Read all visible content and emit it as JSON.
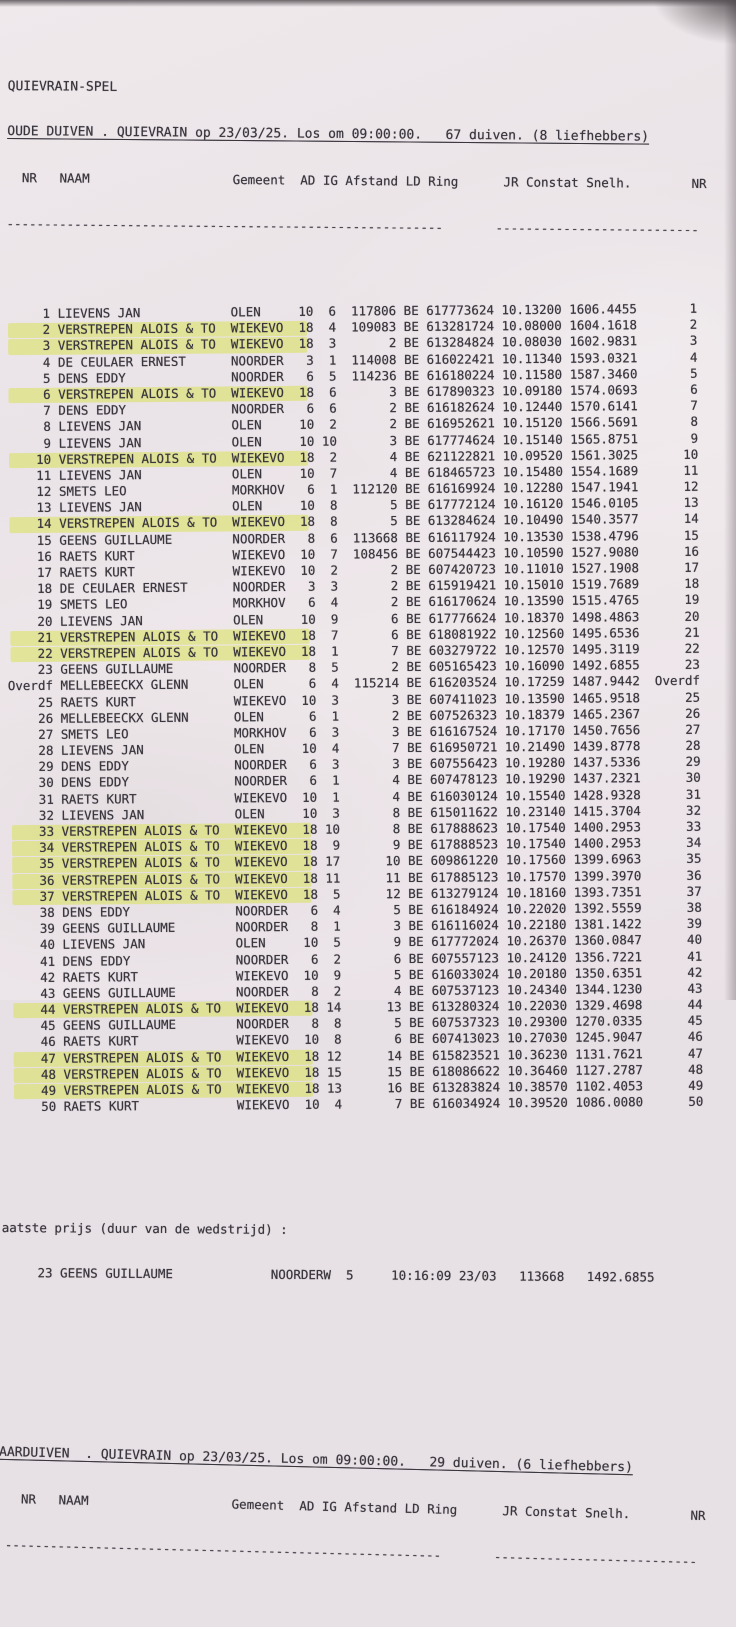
{
  "theme": {
    "highlight": "#d9e25e",
    "paper": "#ece5e9",
    "ink": "#39363d"
  },
  "doc": {
    "title": "QUIEVRAIN-SPEL",
    "section1_title": "OUDE DUIVEN . QUIEVRAIN op 23/03/25. Los om 09:00:00.   67 duiven. (8 liefhebbers)",
    "section2_title": "AARDUIVEN  . QUIEVRAIN op 23/03/25. Los om 09:00:00.   29 duiven. (6 liefhebbers)"
  },
  "columns": {
    "nr": "NR",
    "naam": "NAAM",
    "gemeente": "Gemeent",
    "ad": "AD",
    "ig": "IG",
    "afstand": "Afstand",
    "ld_ring": "LD Ring",
    "jr_constat": "JR Constat",
    "snelh": "Snelh.",
    "nr2": "NR"
  },
  "separators": {
    "left": "----------------------------------------------------------",
    "right": "---------------------------"
  },
  "results": {
    "rows": [
      {
        "n": "1",
        "name": "LIEVENS JAN",
        "gem": "OLEN",
        "ad": "10",
        "ig": "6",
        "d": "117806",
        "ring": "BE 617773624",
        "t": "10.13200",
        "s": "1606.4455"
      },
      {
        "n": "2",
        "name": "VERSTREPEN ALOIS & TO",
        "gem": "WIEKEVO",
        "ad": "18",
        "ig": "4",
        "d": "109083",
        "ring": "BE 613281724",
        "t": "10.08000",
        "s": "1604.1618",
        "hl": true
      },
      {
        "n": "3",
        "name": "VERSTREPEN ALOIS & TO",
        "gem": "WIEKEVO",
        "ad": "18",
        "ig": "3",
        "d": "2",
        "ring": "BE 613284824",
        "t": "10.08030",
        "s": "1602.9831",
        "hl": true
      },
      {
        "n": "4",
        "name": "DE CEULAER ERNEST",
        "gem": "NOORDER",
        "ad": "3",
        "ig": "1",
        "d": "114008",
        "ring": "BE 616022421",
        "t": "10.11340",
        "s": "1593.0321"
      },
      {
        "n": "5",
        "name": "DENS EDDY",
        "gem": "NOORDER",
        "ad": "6",
        "ig": "5",
        "d": "114236",
        "ring": "BE 616180224",
        "t": "10.11580",
        "s": "1587.3460"
      },
      {
        "n": "6",
        "name": "VERSTREPEN ALOIS & TO",
        "gem": "WIEKEVO",
        "ad": "18",
        "ig": "6",
        "d": "3",
        "ring": "BE 617890323",
        "t": "10.09180",
        "s": "1574.0693",
        "hl": true
      },
      {
        "n": "7",
        "name": "DENS EDDY",
        "gem": "NOORDER",
        "ad": "6",
        "ig": "6",
        "d": "2",
        "ring": "BE 616182624",
        "t": "10.12440",
        "s": "1570.6141"
      },
      {
        "n": "8",
        "name": "LIEVENS JAN",
        "gem": "OLEN",
        "ad": "10",
        "ig": "2",
        "d": "2",
        "ring": "BE 616952621",
        "t": "10.15120",
        "s": "1566.5691"
      },
      {
        "n": "9",
        "name": "LIEVENS JAN",
        "gem": "OLEN",
        "ad": "10",
        "ig": "10",
        "d": "3",
        "ring": "BE 617774624",
        "t": "10.15140",
        "s": "1565.8751"
      },
      {
        "n": "10",
        "name": "VERSTREPEN ALOIS & TO",
        "gem": "WIEKEVO",
        "ad": "18",
        "ig": "2",
        "d": "4",
        "ring": "BE 621122821",
        "t": "10.09520",
        "s": "1561.3025",
        "hl": true
      },
      {
        "n": "11",
        "name": "LIEVENS JAN",
        "gem": "OLEN",
        "ad": "10",
        "ig": "7",
        "d": "4",
        "ring": "BE 618465723",
        "t": "10.15480",
        "s": "1554.1689"
      },
      {
        "n": "12",
        "name": "SMETS LEO",
        "gem": "MORKHOV",
        "ad": "6",
        "ig": "1",
        "d": "112120",
        "ring": "BE 616169924",
        "t": "10.12280",
        "s": "1547.1941"
      },
      {
        "n": "13",
        "name": "LIEVENS JAN",
        "gem": "OLEN",
        "ad": "10",
        "ig": "8",
        "d": "5",
        "ring": "BE 617772124",
        "t": "10.16120",
        "s": "1546.0105"
      },
      {
        "n": "14",
        "name": "VERSTREPEN ALOIS & TO",
        "gem": "WIEKEVO",
        "ad": "18",
        "ig": "8",
        "d": "5",
        "ring": "BE 613284624",
        "t": "10.10490",
        "s": "1540.3577",
        "hl": true
      },
      {
        "n": "15",
        "name": "GEENS GUILLAUME",
        "gem": "NOORDER",
        "ad": "8",
        "ig": "6",
        "d": "113668",
        "ring": "BE 616117924",
        "t": "10.13530",
        "s": "1538.4796"
      },
      {
        "n": "16",
        "name": "RAETS KURT",
        "gem": "WIEKEVO",
        "ad": "10",
        "ig": "7",
        "d": "108456",
        "ring": "BE 607544423",
        "t": "10.10590",
        "s": "1527.9080"
      },
      {
        "n": "17",
        "name": "RAETS KURT",
        "gem": "WIEKEVO",
        "ad": "10",
        "ig": "2",
        "d": "2",
        "ring": "BE 607420723",
        "t": "10.11010",
        "s": "1527.1908"
      },
      {
        "n": "18",
        "name": "DE CEULAER ERNEST",
        "gem": "NOORDER",
        "ad": "3",
        "ig": "3",
        "d": "2",
        "ring": "BE 615919421",
        "t": "10.15010",
        "s": "1519.7689"
      },
      {
        "n": "19",
        "name": "SMETS LEO",
        "gem": "MORKHOV",
        "ad": "6",
        "ig": "4",
        "d": "2",
        "ring": "BE 616170624",
        "t": "10.13590",
        "s": "1515.4765"
      },
      {
        "n": "20",
        "name": "LIEVENS JAN",
        "gem": "OLEN",
        "ad": "10",
        "ig": "9",
        "d": "6",
        "ring": "BE 617776624",
        "t": "10.18370",
        "s": "1498.4863"
      },
      {
        "n": "21",
        "name": "VERSTREPEN ALOIS & TO",
        "gem": "WIEKEVO",
        "ad": "18",
        "ig": "7",
        "d": "6",
        "ring": "BE 618081922",
        "t": "10.12560",
        "s": "1495.6536",
        "hl": true
      },
      {
        "n": "22",
        "name": "VERSTREPEN ALOIS & TO",
        "gem": "WIEKEVO",
        "ad": "18",
        "ig": "1",
        "d": "7",
        "ring": "BE 603279722",
        "t": "10.12570",
        "s": "1495.3119",
        "hl": true
      },
      {
        "n": "23",
        "name": "GEENS GUILLAUME",
        "gem": "NOORDER",
        "ad": "8",
        "ig": "5",
        "d": "2",
        "ring": "BE 605165423",
        "t": "10.16090",
        "s": "1492.6855"
      },
      {
        "n": "Overdf",
        "name": "MELLEBEECKX GLENN",
        "gem": "OLEN",
        "ad": "6",
        "ig": "4",
        "d": "115214",
        "ring": "BE 616203524",
        "t": "10.17259",
        "s": "1487.9442"
      },
      {
        "n": "25",
        "name": "RAETS KURT",
        "gem": "WIEKEVO",
        "ad": "10",
        "ig": "3",
        "d": "3",
        "ring": "BE 607411023",
        "t": "10.13590",
        "s": "1465.9518"
      },
      {
        "n": "26",
        "name": "MELLEBEECKX GLENN",
        "gem": "OLEN",
        "ad": "6",
        "ig": "1",
        "d": "2",
        "ring": "BE 607526323",
        "t": "10.18379",
        "s": "1465.2367"
      },
      {
        "n": "27",
        "name": "SMETS LEO",
        "gem": "MORKHOV",
        "ad": "6",
        "ig": "3",
        "d": "3",
        "ring": "BE 616167524",
        "t": "10.17170",
        "s": "1450.7656"
      },
      {
        "n": "28",
        "name": "LIEVENS JAN",
        "gem": "OLEN",
        "ad": "10",
        "ig": "4",
        "d": "7",
        "ring": "BE 616950721",
        "t": "10.21490",
        "s": "1439.8778"
      },
      {
        "n": "29",
        "name": "DENS EDDY",
        "gem": "NOORDER",
        "ad": "6",
        "ig": "3",
        "d": "3",
        "ring": "BE 607556423",
        "t": "10.19280",
        "s": "1437.5336"
      },
      {
        "n": "30",
        "name": "DENS EDDY",
        "gem": "NOORDER",
        "ad": "6",
        "ig": "1",
        "d": "4",
        "ring": "BE 607478123",
        "t": "10.19290",
        "s": "1437.2321"
      },
      {
        "n": "31",
        "name": "RAETS KURT",
        "gem": "WIEKEVO",
        "ad": "10",
        "ig": "1",
        "d": "4",
        "ring": "BE 616030124",
        "t": "10.15540",
        "s": "1428.9328"
      },
      {
        "n": "32",
        "name": "LIEVENS JAN",
        "gem": "OLEN",
        "ad": "10",
        "ig": "3",
        "d": "8",
        "ring": "BE 615011622",
        "t": "10.23140",
        "s": "1415.3704"
      },
      {
        "n": "33",
        "name": "VERSTREPEN ALOIS & TO",
        "gem": "WIEKEVO",
        "ad": "18",
        "ig": "10",
        "d": "8",
        "ring": "BE 617888623",
        "t": "10.17540",
        "s": "1400.2953",
        "hl": true
      },
      {
        "n": "34",
        "name": "VERSTREPEN ALOIS & TO",
        "gem": "WIEKEVO",
        "ad": "18",
        "ig": "9",
        "d": "9",
        "ring": "BE 617888523",
        "t": "10.17540",
        "s": "1400.2953",
        "hl": true
      },
      {
        "n": "35",
        "name": "VERSTREPEN ALOIS & TO",
        "gem": "WIEKEVO",
        "ad": "18",
        "ig": "17",
        "d": "10",
        "ring": "BE 609861220",
        "t": "10.17560",
        "s": "1399.6963",
        "hl": true
      },
      {
        "n": "36",
        "name": "VERSTREPEN ALOIS & TO",
        "gem": "WIEKEVO",
        "ad": "18",
        "ig": "11",
        "d": "11",
        "ring": "BE 617885123",
        "t": "10.17570",
        "s": "1399.3970",
        "hl": true
      },
      {
        "n": "37",
        "name": "VERSTREPEN ALOIS & TO",
        "gem": "WIEKEVO",
        "ad": "18",
        "ig": "5",
        "d": "12",
        "ring": "BE 613279124",
        "t": "10.18160",
        "s": "1393.7351",
        "hl": true
      },
      {
        "n": "38",
        "name": "DENS EDDY",
        "gem": "NOORDER",
        "ad": "6",
        "ig": "4",
        "d": "5",
        "ring": "BE 616184924",
        "t": "10.22020",
        "s": "1392.5559"
      },
      {
        "n": "39",
        "name": "GEENS GUILLAUME",
        "gem": "NOORDER",
        "ad": "8",
        "ig": "1",
        "d": "3",
        "ring": "BE 616116024",
        "t": "10.22180",
        "s": "1381.1422"
      },
      {
        "n": "40",
        "name": "LIEVENS JAN",
        "gem": "OLEN",
        "ad": "10",
        "ig": "5",
        "d": "9",
        "ring": "BE 617772024",
        "t": "10.26370",
        "s": "1360.0847"
      },
      {
        "n": "41",
        "name": "DENS EDDY",
        "gem": "NOORDER",
        "ad": "6",
        "ig": "2",
        "d": "6",
        "ring": "BE 607557123",
        "t": "10.24120",
        "s": "1356.7221"
      },
      {
        "n": "42",
        "name": "RAETS KURT",
        "gem": "WIEKEVO",
        "ad": "10",
        "ig": "9",
        "d": "5",
        "ring": "BE 616033024",
        "t": "10.20180",
        "s": "1350.6351"
      },
      {
        "n": "43",
        "name": "GEENS GUILLAUME",
        "gem": "NOORDER",
        "ad": "8",
        "ig": "2",
        "d": "4",
        "ring": "BE 607537123",
        "t": "10.24340",
        "s": "1344.1230"
      },
      {
        "n": "44",
        "name": "VERSTREPEN ALOIS & TO",
        "gem": "WIEKEVO",
        "ad": "18",
        "ig": "14",
        "d": "13",
        "ring": "BE 613280324",
        "t": "10.22030",
        "s": "1329.4698",
        "hl": true
      },
      {
        "n": "45",
        "name": "GEENS GUILLAUME",
        "gem": "NOORDER",
        "ad": "8",
        "ig": "8",
        "d": "5",
        "ring": "BE 607537323",
        "t": "10.29300",
        "s": "1270.0335"
      },
      {
        "n": "46",
        "name": "RAETS KURT",
        "gem": "WIEKEVO",
        "ad": "10",
        "ig": "8",
        "d": "6",
        "ring": "BE 607413023",
        "t": "10.27030",
        "s": "1245.9047"
      },
      {
        "n": "47",
        "name": "VERSTREPEN ALOIS & TO",
        "gem": "WIEKEVO",
        "ad": "18",
        "ig": "12",
        "d": "14",
        "ring": "BE 615823521",
        "t": "10.36230",
        "s": "1131.7621",
        "hl": true
      },
      {
        "n": "48",
        "name": "VERSTREPEN ALOIS & TO",
        "gem": "WIEKEVO",
        "ad": "18",
        "ig": "15",
        "d": "15",
        "ring": "BE 618086622",
        "t": "10.36460",
        "s": "1127.2787",
        "hl": true
      },
      {
        "n": "49",
        "name": "VERSTREPEN ALOIS & TO",
        "gem": "WIEKEVO",
        "ad": "18",
        "ig": "13",
        "d": "16",
        "ring": "BE 613283824",
        "t": "10.38570",
        "s": "1102.4053",
        "hl": true
      },
      {
        "n": "50",
        "name": "RAETS KURT",
        "gem": "WIEKEVO",
        "ad": "10",
        "ig": "4",
        "d": "7",
        "ring": "BE 616034924",
        "t": "10.39520",
        "s": "1086.0080"
      }
    ]
  },
  "closing": {
    "label": "aatste prijs (duur van de wedstrijd) :",
    "row": {
      "nr": "23",
      "naam": "GEENS GUILLAUME",
      "gemeente": "NOORDERW",
      "ad": "5",
      "time": "10:16:09",
      "date": "23/03",
      "afstand": "113668",
      "snelh": "1492.6855"
    }
  }
}
